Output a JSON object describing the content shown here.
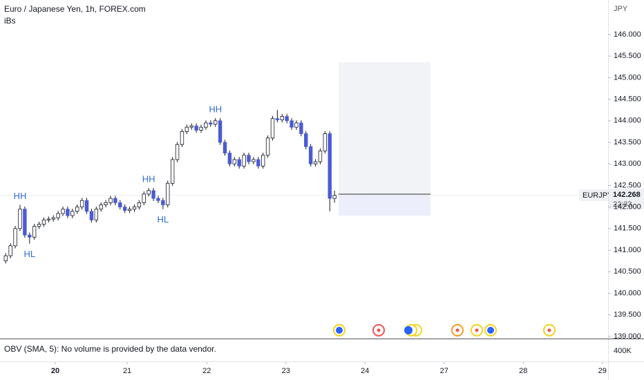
{
  "header": {
    "title": "Euro / Japanese Yen, 1h, FOREX.com",
    "indicator": "iBs"
  },
  "chart_data": {
    "type": "candlestick",
    "open": [
      140.75,
      140.87,
      141.1,
      141.5,
      141.95,
      141.35,
      141.3,
      141.55,
      141.6,
      141.7,
      141.72,
      141.75,
      141.85,
      141.95,
      141.8,
      141.9,
      142.0,
      142.15,
      141.9,
      141.7,
      141.95,
      142.05,
      142.1,
      142.2,
      142.1,
      142.0,
      141.92,
      141.95,
      142.0,
      142.1,
      142.3,
      142.38,
      142.2,
      142.15,
      142.05,
      142.55,
      143.1,
      143.45,
      143.75,
      143.85,
      143.88,
      143.78,
      143.85,
      143.95,
      143.92,
      144.0,
      143.5,
      143.25,
      143.0,
      143.1,
      142.95,
      143.2,
      143.05,
      143.1,
      142.95,
      143.2,
      143.6,
      144.05,
      144.02,
      144.1,
      144.0,
      143.85,
      143.95,
      143.7,
      143.4,
      143.0,
      143.05,
      143.3,
      143.7,
      142.2
    ],
    "high": [
      140.93,
      141.16,
      141.56,
      142.05,
      142.01,
      141.41,
      141.61,
      141.66,
      141.76,
      141.78,
      141.81,
      141.91,
      142.01,
      142.01,
      141.96,
      142.06,
      142.21,
      142.21,
      141.96,
      142.01,
      142.11,
      142.16,
      142.26,
      142.26,
      142.16,
      142.06,
      142.01,
      142.06,
      142.16,
      142.36,
      142.44,
      142.44,
      142.26,
      142.21,
      142.61,
      143.16,
      143.51,
      143.81,
      143.91,
      143.94,
      143.94,
      143.91,
      144.01,
      144.01,
      144.06,
      144.06,
      143.56,
      143.31,
      143.16,
      143.16,
      143.26,
      143.26,
      143.16,
      143.16,
      143.26,
      143.66,
      144.11,
      144.25,
      144.16,
      144.16,
      144.06,
      144.01,
      144.01,
      143.76,
      143.46,
      143.11,
      143.36,
      143.76,
      143.76,
      142.38
    ],
    "low": [
      140.69,
      140.81,
      141.04,
      141.44,
      141.29,
      141.15,
      141.24,
      141.49,
      141.54,
      141.64,
      141.66,
      141.69,
      141.79,
      141.74,
      141.74,
      141.84,
      141.94,
      141.84,
      141.64,
      141.64,
      141.89,
      141.99,
      142.04,
      142.04,
      141.94,
      141.86,
      141.86,
      141.89,
      141.94,
      142.04,
      142.24,
      142.14,
      142.09,
      141.95,
      141.99,
      142.49,
      143.04,
      143.39,
      143.69,
      143.79,
      143.72,
      143.72,
      143.79,
      143.86,
      143.86,
      143.44,
      143.19,
      142.94,
      142.94,
      142.89,
      142.89,
      142.99,
      142.99,
      142.89,
      142.89,
      143.14,
      143.54,
      143.96,
      143.96,
      143.94,
      143.79,
      143.79,
      143.64,
      143.34,
      142.94,
      142.94,
      142.99,
      143.24,
      141.9,
      142.1
    ],
    "close": [
      140.87,
      141.1,
      141.5,
      141.95,
      141.35,
      141.3,
      141.55,
      141.6,
      141.7,
      141.72,
      141.75,
      141.85,
      141.95,
      141.8,
      141.9,
      142.0,
      142.15,
      141.9,
      141.7,
      141.95,
      142.05,
      142.1,
      142.2,
      142.1,
      142.0,
      141.92,
      141.95,
      142.0,
      142.1,
      142.3,
      142.38,
      142.2,
      142.15,
      142.05,
      142.55,
      143.1,
      143.45,
      143.75,
      143.85,
      143.88,
      143.78,
      143.85,
      143.95,
      143.92,
      144.0,
      143.5,
      143.25,
      143.0,
      143.1,
      142.95,
      143.2,
      143.05,
      143.1,
      142.95,
      143.2,
      143.6,
      144.05,
      144.02,
      144.1,
      144.0,
      143.85,
      143.95,
      143.7,
      143.4,
      143.0,
      143.05,
      143.3,
      143.7,
      142.2,
      142.268
    ],
    "up_color": "#ffffff",
    "down_color": "#4a5bd4",
    "ylim": [
      138.95,
      146.8
    ],
    "yticks": [
      {
        "value": 139,
        "label": "139.000"
      },
      {
        "value": 139.5,
        "label": "139.500"
      },
      {
        "value": 140,
        "label": "140.000"
      },
      {
        "value": 140.5,
        "label": "140.500"
      },
      {
        "value": 141,
        "label": "141.000"
      },
      {
        "value": 141.5,
        "label": "141.500"
      },
      {
        "value": 142,
        "label": "142.000"
      },
      {
        "value": 142.5,
        "label": "142.500"
      },
      {
        "value": 143,
        "label": "143.000"
      },
      {
        "value": 143.5,
        "label": "143.500"
      },
      {
        "value": 144,
        "label": "144.000"
      },
      {
        "value": 144.5,
        "label": "144.500"
      },
      {
        "value": 145,
        "label": "145.000"
      },
      {
        "value": 145.5,
        "label": "145.500"
      },
      {
        "value": 146,
        "label": "146.000"
      }
    ],
    "y_axis_unit": "JPY",
    "xlim": [
      -1.2,
      126.4
    ],
    "xticks": [
      {
        "value": 10.4,
        "label": "20"
      },
      {
        "value": 25.5,
        "label": "21"
      },
      {
        "value": 42.2,
        "label": "22"
      },
      {
        "value": 58.8,
        "label": "23"
      },
      {
        "value": 75.4,
        "label": "24"
      },
      {
        "value": 92,
        "label": "27"
      },
      {
        "value": 108.6,
        "label": "28"
      },
      {
        "value": 125.2,
        "label": "29"
      }
    ],
    "grid": false,
    "last_price": {
      "symbol": "EURJPY",
      "value": 142.268,
      "countdown": "22:33"
    },
    "annotations": [
      {
        "text": "HH"
      },
      {
        "text": "HL"
      },
      {
        "text": "HH"
      },
      {
        "text": "HL"
      },
      {
        "text": "HH"
      }
    ]
  },
  "obv_pane": {
    "label": "OBV (SMA, 5): No volume is provided by the data vendor.",
    "axis_label": "400K"
  }
}
